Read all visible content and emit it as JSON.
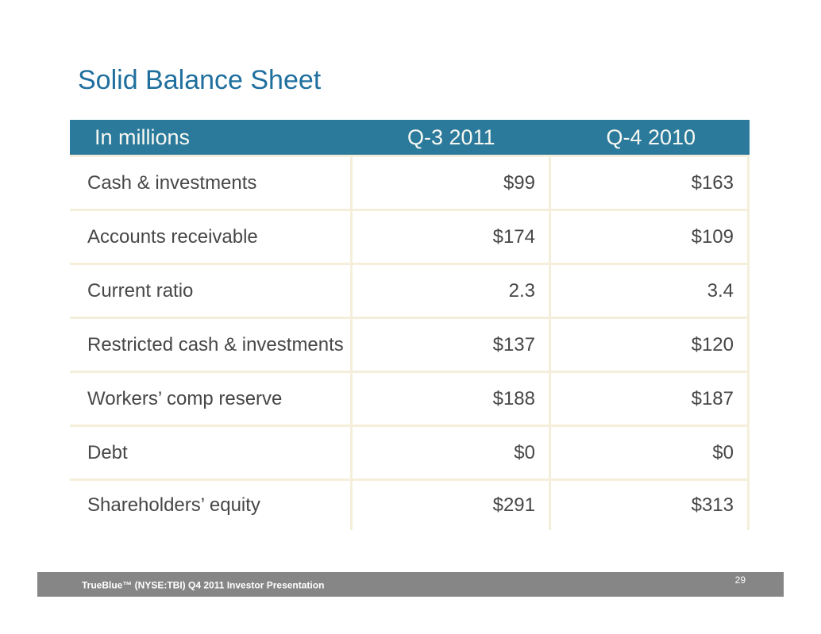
{
  "slide": {
    "title": "Solid Balance Sheet",
    "table": {
      "header": [
        "In millions",
        "Q-3 2011",
        "Q-4 2010"
      ],
      "rows": [
        {
          "label": "Cash & investments",
          "q3_2011": "$99",
          "q4_2010": "$163"
        },
        {
          "label": "Accounts receivable",
          "q3_2011": "$174",
          "q4_2010": "$109"
        },
        {
          "label": "Current ratio",
          "q3_2011": "2.3",
          "q4_2010": "3.4"
        },
        {
          "label": "Restricted cash & investments",
          "q3_2011": "$137",
          "q4_2010": "$120"
        },
        {
          "label": "Workers’ comp reserve",
          "q3_2011": "$188",
          "q4_2010": "$187"
        },
        {
          "label": "Debt",
          "q3_2011": "$0",
          "q4_2010": "$0"
        },
        {
          "label": "Shareholders’ equity",
          "q3_2011": "$291",
          "q4_2010": "$313"
        }
      ]
    },
    "footer": {
      "text": "TrueBlue™ (NYSE:TBI) Q4 2011 Investor Presentation",
      "page_number": "29"
    }
  },
  "colors": {
    "title_blue": "#1f6f9e",
    "header_teal": "#2b7a9c",
    "header_text": "#f8f8f2",
    "cell_border_cream": "#f4eeda",
    "body_text_gray": "#474747",
    "footer_gray": "#868686",
    "background": "#ffffff"
  },
  "chart_data": {
    "type": "table",
    "title": "Solid Balance Sheet",
    "unit": "In millions",
    "categories": [
      "Cash & investments",
      "Accounts receivable",
      "Current ratio",
      "Restricted cash & investments",
      "Workers’ comp reserve",
      "Debt",
      "Shareholders’ equity"
    ],
    "series": [
      {
        "name": "Q-3 2011",
        "values": [
          99,
          174,
          2.3,
          137,
          188,
          0,
          291
        ]
      },
      {
        "name": "Q-4 2010",
        "values": [
          163,
          109,
          3.4,
          120,
          187,
          0,
          313
        ]
      }
    ]
  }
}
